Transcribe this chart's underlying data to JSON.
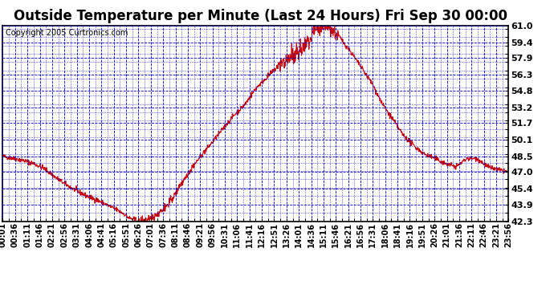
{
  "title": "Outside Temperature per Minute (Last 24 Hours) Fri Sep 30 00:00",
  "copyright": "Copyright 2005 Curtronics.com",
  "ylim": [
    42.3,
    61.0
  ],
  "yticks": [
    42.3,
    43.9,
    45.4,
    47.0,
    48.5,
    50.1,
    51.7,
    53.2,
    54.8,
    56.3,
    57.9,
    59.4,
    61.0
  ],
  "plot_bg": "#ffffff",
  "fig_bg": "#ffffff",
  "line_color": "#cc0000",
  "grid_color": "#0000cc",
  "title_fontsize": 12,
  "copyright_fontsize": 7,
  "tick_label_fontsize": 8,
  "x_tick_labels": [
    "00:01",
    "00:36",
    "01:11",
    "01:46",
    "02:21",
    "02:56",
    "03:31",
    "04:06",
    "04:41",
    "05:16",
    "05:51",
    "06:26",
    "07:01",
    "07:36",
    "08:11",
    "08:46",
    "09:21",
    "09:56",
    "10:31",
    "11:06",
    "11:41",
    "12:16",
    "12:51",
    "13:26",
    "14:01",
    "14:36",
    "15:11",
    "15:46",
    "16:21",
    "16:56",
    "17:31",
    "18:06",
    "18:41",
    "19:16",
    "19:51",
    "20:26",
    "21:01",
    "21:36",
    "22:11",
    "22:46",
    "23:21",
    "23:56"
  ],
  "curve_points_hours": [
    0,
    0.5,
    1.0,
    1.5,
    2.0,
    2.5,
    3.0,
    3.5,
    4.0,
    4.5,
    5.0,
    5.5,
    5.75,
    6.0,
    6.5,
    7.0,
    7.5,
    8.0,
    8.5,
    9.0,
    9.5,
    10.0,
    10.5,
    11.0,
    11.5,
    12.0,
    12.5,
    13.0,
    13.5,
    14.0,
    14.5,
    14.75,
    15.0,
    15.25,
    15.5,
    15.75,
    16.0,
    16.5,
    17.0,
    17.5,
    18.0,
    18.5,
    19.0,
    19.5,
    20.0,
    20.5,
    21.0,
    21.5,
    22.0,
    22.5,
    23.0,
    23.5,
    23.99
  ],
  "curve_points_temp": [
    48.5,
    48.3,
    48.1,
    47.8,
    47.3,
    46.5,
    45.8,
    45.2,
    44.7,
    44.3,
    43.8,
    43.3,
    43.0,
    42.6,
    42.3,
    42.5,
    43.2,
    44.3,
    46.0,
    47.5,
    48.8,
    50.0,
    51.3,
    52.5,
    53.5,
    55.0,
    56.0,
    57.0,
    57.7,
    58.3,
    59.5,
    60.2,
    60.7,
    61.0,
    60.8,
    60.3,
    59.8,
    58.5,
    57.0,
    55.5,
    53.5,
    52.0,
    50.5,
    49.5,
    48.7,
    48.3,
    47.8,
    47.5,
    48.3,
    48.3,
    47.5,
    47.2,
    47.0
  ]
}
